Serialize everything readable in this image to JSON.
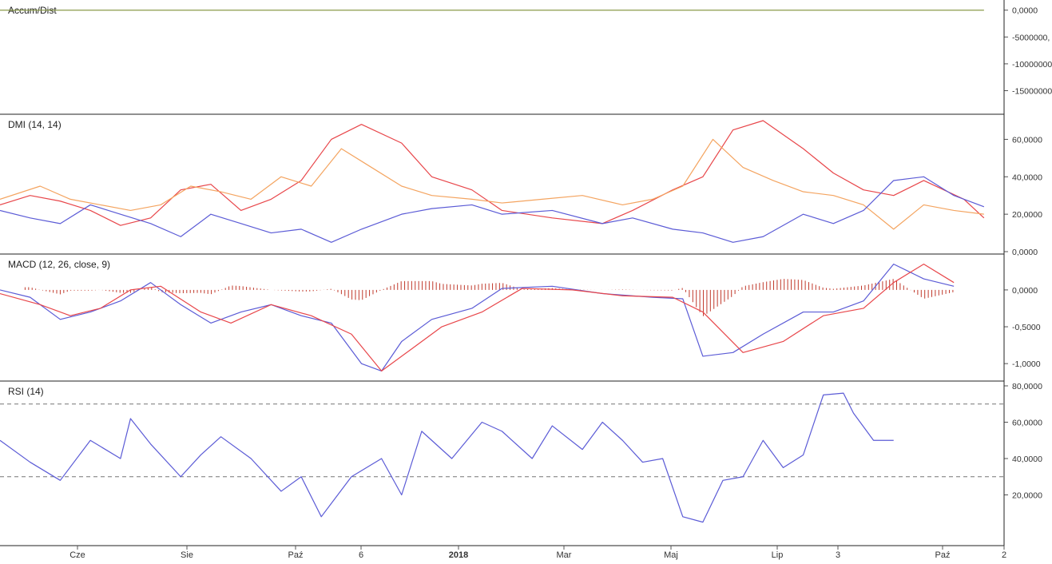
{
  "chart_data": [
    {
      "type": "line",
      "title": "Accum/Dist",
      "ylim": [
        -18500000,
        1000000
      ],
      "y_ticks": [
        {
          "value": 0,
          "label": "0,0000"
        },
        {
          "value": -5000000,
          "label": "-5000000,"
        },
        {
          "value": -10000000,
          "label": "-10000000"
        },
        {
          "value": -15000000,
          "label": "-15000000"
        }
      ],
      "series": [
        {
          "color": "#8a9a4a",
          "values": [
            [
              0,
              0.3
            ],
            [
              0.05,
              0.25
            ],
            [
              0.1,
              0.3
            ],
            [
              0.15,
              0.1
            ],
            [
              0.2,
              -0.3
            ],
            [
              0.25,
              -0.5
            ],
            [
              0.3,
              -0.9
            ],
            [
              0.33,
              -1.2
            ],
            [
              0.35,
              -2.6
            ],
            [
              0.4,
              -3.3
            ],
            [
              0.45,
              -4.2
            ],
            [
              0.47,
              -4.5
            ],
            [
              0.5,
              -4.7
            ],
            [
              0.55,
              -5.5
            ],
            [
              0.6,
              -6.0
            ],
            [
              0.65,
              -5.9
            ],
            [
              0.7,
              -6.0
            ],
            [
              0.72,
              -7.2
            ],
            [
              0.75,
              -8.9
            ],
            [
              0.77,
              -9.0
            ],
            [
              0.8,
              -10.5
            ],
            [
              0.82,
              -13.5
            ],
            [
              0.84,
              -14.8
            ],
            [
              0.86,
              -15.5
            ],
            [
              0.875,
              -17.8
            ],
            [
              0.88,
              -12.5
            ],
            [
              0.9,
              -9.5
            ],
            [
              0.91,
              -7.0
            ],
            [
              0.92,
              -9.8
            ],
            [
              0.95,
              -10.2
            ],
            [
              0.97,
              -10.6
            ],
            [
              0.98,
              -11.0
            ]
          ]
        }
      ]
    },
    {
      "type": "line",
      "title": "DMI (14, 14)",
      "ylim": [
        0,
        70
      ],
      "y_ticks": [
        {
          "value": 0,
          "label": "0,0000"
        },
        {
          "value": 20,
          "label": "20,0000"
        },
        {
          "value": 40,
          "label": "40,0000"
        },
        {
          "value": 60,
          "label": "60,0000"
        }
      ],
      "series": [
        {
          "color": "#e8464a",
          "values": [
            [
              0,
              25
            ],
            [
              0.03,
              30
            ],
            [
              0.06,
              27
            ],
            [
              0.09,
              22
            ],
            [
              0.12,
              14
            ],
            [
              0.15,
              18
            ],
            [
              0.18,
              33
            ],
            [
              0.21,
              36
            ],
            [
              0.24,
              22
            ],
            [
              0.27,
              28
            ],
            [
              0.3,
              38
            ],
            [
              0.33,
              60
            ],
            [
              0.36,
              68
            ],
            [
              0.4,
              58
            ],
            [
              0.43,
              40
            ],
            [
              0.47,
              33
            ],
            [
              0.5,
              22
            ],
            [
              0.55,
              18
            ],
            [
              0.6,
              15
            ],
            [
              0.63,
              22
            ],
            [
              0.67,
              33
            ],
            [
              0.7,
              40
            ],
            [
              0.73,
              65
            ],
            [
              0.76,
              70
            ],
            [
              0.8,
              55
            ],
            [
              0.83,
              42
            ],
            [
              0.86,
              33
            ],
            [
              0.89,
              30
            ],
            [
              0.92,
              38
            ],
            [
              0.96,
              28
            ],
            [
              0.98,
              18
            ]
          ]
        },
        {
          "color": "#f4a460",
          "values": [
            [
              0,
              28
            ],
            [
              0.04,
              35
            ],
            [
              0.07,
              28
            ],
            [
              0.1,
              25
            ],
            [
              0.13,
              22
            ],
            [
              0.16,
              25
            ],
            [
              0.19,
              35
            ],
            [
              0.22,
              32
            ],
            [
              0.25,
              28
            ],
            [
              0.28,
              40
            ],
            [
              0.31,
              35
            ],
            [
              0.34,
              55
            ],
            [
              0.37,
              45
            ],
            [
              0.4,
              35
            ],
            [
              0.43,
              30
            ],
            [
              0.47,
              28
            ],
            [
              0.5,
              26
            ],
            [
              0.54,
              28
            ],
            [
              0.58,
              30
            ],
            [
              0.62,
              25
            ],
            [
              0.65,
              28
            ],
            [
              0.68,
              35
            ],
            [
              0.71,
              60
            ],
            [
              0.74,
              45
            ],
            [
              0.77,
              38
            ],
            [
              0.8,
              32
            ],
            [
              0.83,
              30
            ],
            [
              0.86,
              25
            ],
            [
              0.89,
              12
            ],
            [
              0.92,
              25
            ],
            [
              0.95,
              22
            ],
            [
              0.98,
              20
            ]
          ]
        },
        {
          "color": "#5b5bd6",
          "values": [
            [
              0,
              22
            ],
            [
              0.03,
              18
            ],
            [
              0.06,
              15
            ],
            [
              0.09,
              25
            ],
            [
              0.12,
              20
            ],
            [
              0.15,
              15
            ],
            [
              0.18,
              8
            ],
            [
              0.21,
              20
            ],
            [
              0.24,
              15
            ],
            [
              0.27,
              10
            ],
            [
              0.3,
              12
            ],
            [
              0.33,
              5
            ],
            [
              0.36,
              12
            ],
            [
              0.4,
              20
            ],
            [
              0.43,
              23
            ],
            [
              0.47,
              25
            ],
            [
              0.5,
              20
            ],
            [
              0.55,
              22
            ],
            [
              0.6,
              15
            ],
            [
              0.63,
              18
            ],
            [
              0.67,
              12
            ],
            [
              0.7,
              10
            ],
            [
              0.73,
              5
            ],
            [
              0.76,
              8
            ],
            [
              0.8,
              20
            ],
            [
              0.83,
              15
            ],
            [
              0.86,
              22
            ],
            [
              0.89,
              38
            ],
            [
              0.92,
              40
            ],
            [
              0.95,
              30
            ],
            [
              0.98,
              24
            ]
          ]
        }
      ]
    },
    {
      "type": "line",
      "title": "MACD (12, 26, close, 9)",
      "ylim": [
        -1.15,
        0.4
      ],
      "y_ticks": [
        {
          "value": 0,
          "label": "0,0000"
        },
        {
          "value": -0.5,
          "label": "-0,5000"
        },
        {
          "value": -1,
          "label": "-1,0000"
        }
      ],
      "series": [
        {
          "color": "#5b5bd6",
          "values": [
            [
              0,
              0
            ],
            [
              0.03,
              -0.1
            ],
            [
              0.06,
              -0.4
            ],
            [
              0.09,
              -0.3
            ],
            [
              0.12,
              -0.15
            ],
            [
              0.15,
              0.1
            ],
            [
              0.18,
              -0.2
            ],
            [
              0.21,
              -0.45
            ],
            [
              0.24,
              -0.3
            ],
            [
              0.27,
              -0.2
            ],
            [
              0.3,
              -0.35
            ],
            [
              0.33,
              -0.45
            ],
            [
              0.36,
              -1.0
            ],
            [
              0.38,
              -1.1
            ],
            [
              0.4,
              -0.7
            ],
            [
              0.43,
              -0.4
            ],
            [
              0.47,
              -0.25
            ],
            [
              0.5,
              0.02
            ],
            [
              0.55,
              0.05
            ],
            [
              0.6,
              -0.05
            ],
            [
              0.65,
              -0.1
            ],
            [
              0.68,
              -0.12
            ],
            [
              0.7,
              -0.9
            ],
            [
              0.73,
              -0.85
            ],
            [
              0.76,
              -0.6
            ],
            [
              0.8,
              -0.3
            ],
            [
              0.83,
              -0.3
            ],
            [
              0.86,
              -0.15
            ],
            [
              0.89,
              0.35
            ],
            [
              0.92,
              0.15
            ],
            [
              0.95,
              0.05
            ]
          ]
        },
        {
          "color": "#e8464a",
          "values": [
            [
              0,
              -0.05
            ],
            [
              0.04,
              -0.2
            ],
            [
              0.07,
              -0.35
            ],
            [
              0.1,
              -0.25
            ],
            [
              0.13,
              0.0
            ],
            [
              0.16,
              0.05
            ],
            [
              0.2,
              -0.3
            ],
            [
              0.23,
              -0.45
            ],
            [
              0.27,
              -0.2
            ],
            [
              0.31,
              -0.35
            ],
            [
              0.35,
              -0.6
            ],
            [
              0.38,
              -1.1
            ],
            [
              0.41,
              -0.8
            ],
            [
              0.44,
              -0.5
            ],
            [
              0.48,
              -0.3
            ],
            [
              0.52,
              0.02
            ],
            [
              0.57,
              0.0
            ],
            [
              0.62,
              -0.08
            ],
            [
              0.67,
              -0.1
            ],
            [
              0.7,
              -0.3
            ],
            [
              0.74,
              -0.85
            ],
            [
              0.78,
              -0.7
            ],
            [
              0.82,
              -0.35
            ],
            [
              0.86,
              -0.25
            ],
            [
              0.89,
              0.1
            ],
            [
              0.92,
              0.35
            ],
            [
              0.95,
              0.1
            ]
          ]
        }
      ],
      "histogram_color": "#c0392b"
    },
    {
      "type": "line",
      "title": "RSI (14)",
      "ylim": [
        0,
        80
      ],
      "y_ticks": [
        {
          "value": 20,
          "label": "20,0000"
        },
        {
          "value": 40,
          "label": "40,0000"
        },
        {
          "value": 60,
          "label": "60,0000"
        },
        {
          "value": 80,
          "label": "80,0000"
        }
      ],
      "levels": [
        70,
        30
      ],
      "series": [
        {
          "color": "#5b5bd6",
          "values": [
            [
              0,
              50
            ],
            [
              0.03,
              38
            ],
            [
              0.06,
              28
            ],
            [
              0.09,
              50
            ],
            [
              0.12,
              40
            ],
            [
              0.13,
              62
            ],
            [
              0.15,
              48
            ],
            [
              0.18,
              30
            ],
            [
              0.2,
              42
            ],
            [
              0.22,
              52
            ],
            [
              0.25,
              40
            ],
            [
              0.28,
              22
            ],
            [
              0.3,
              30
            ],
            [
              0.32,
              8
            ],
            [
              0.35,
              30
            ],
            [
              0.38,
              40
            ],
            [
              0.4,
              20
            ],
            [
              0.42,
              55
            ],
            [
              0.45,
              40
            ],
            [
              0.48,
              60
            ],
            [
              0.5,
              55
            ],
            [
              0.53,
              40
            ],
            [
              0.55,
              58
            ],
            [
              0.58,
              45
            ],
            [
              0.6,
              60
            ],
            [
              0.62,
              50
            ],
            [
              0.64,
              38
            ],
            [
              0.66,
              40
            ],
            [
              0.68,
              8
            ],
            [
              0.7,
              5
            ],
            [
              0.72,
              28
            ],
            [
              0.74,
              30
            ],
            [
              0.76,
              50
            ],
            [
              0.78,
              35
            ],
            [
              0.8,
              42
            ],
            [
              0.82,
              75
            ],
            [
              0.84,
              76
            ],
            [
              0.85,
              65
            ],
            [
              0.87,
              50
            ],
            [
              0.89,
              50
            ]
          ]
        }
      ]
    }
  ],
  "x_axis": {
    "labels": [
      "Cze",
      "Sie",
      "Paź",
      "6",
      "2018",
      "Mar",
      "Maj",
      "Lip",
      "3",
      "Paź",
      "2"
    ],
    "bold": [
      "2018"
    ]
  }
}
